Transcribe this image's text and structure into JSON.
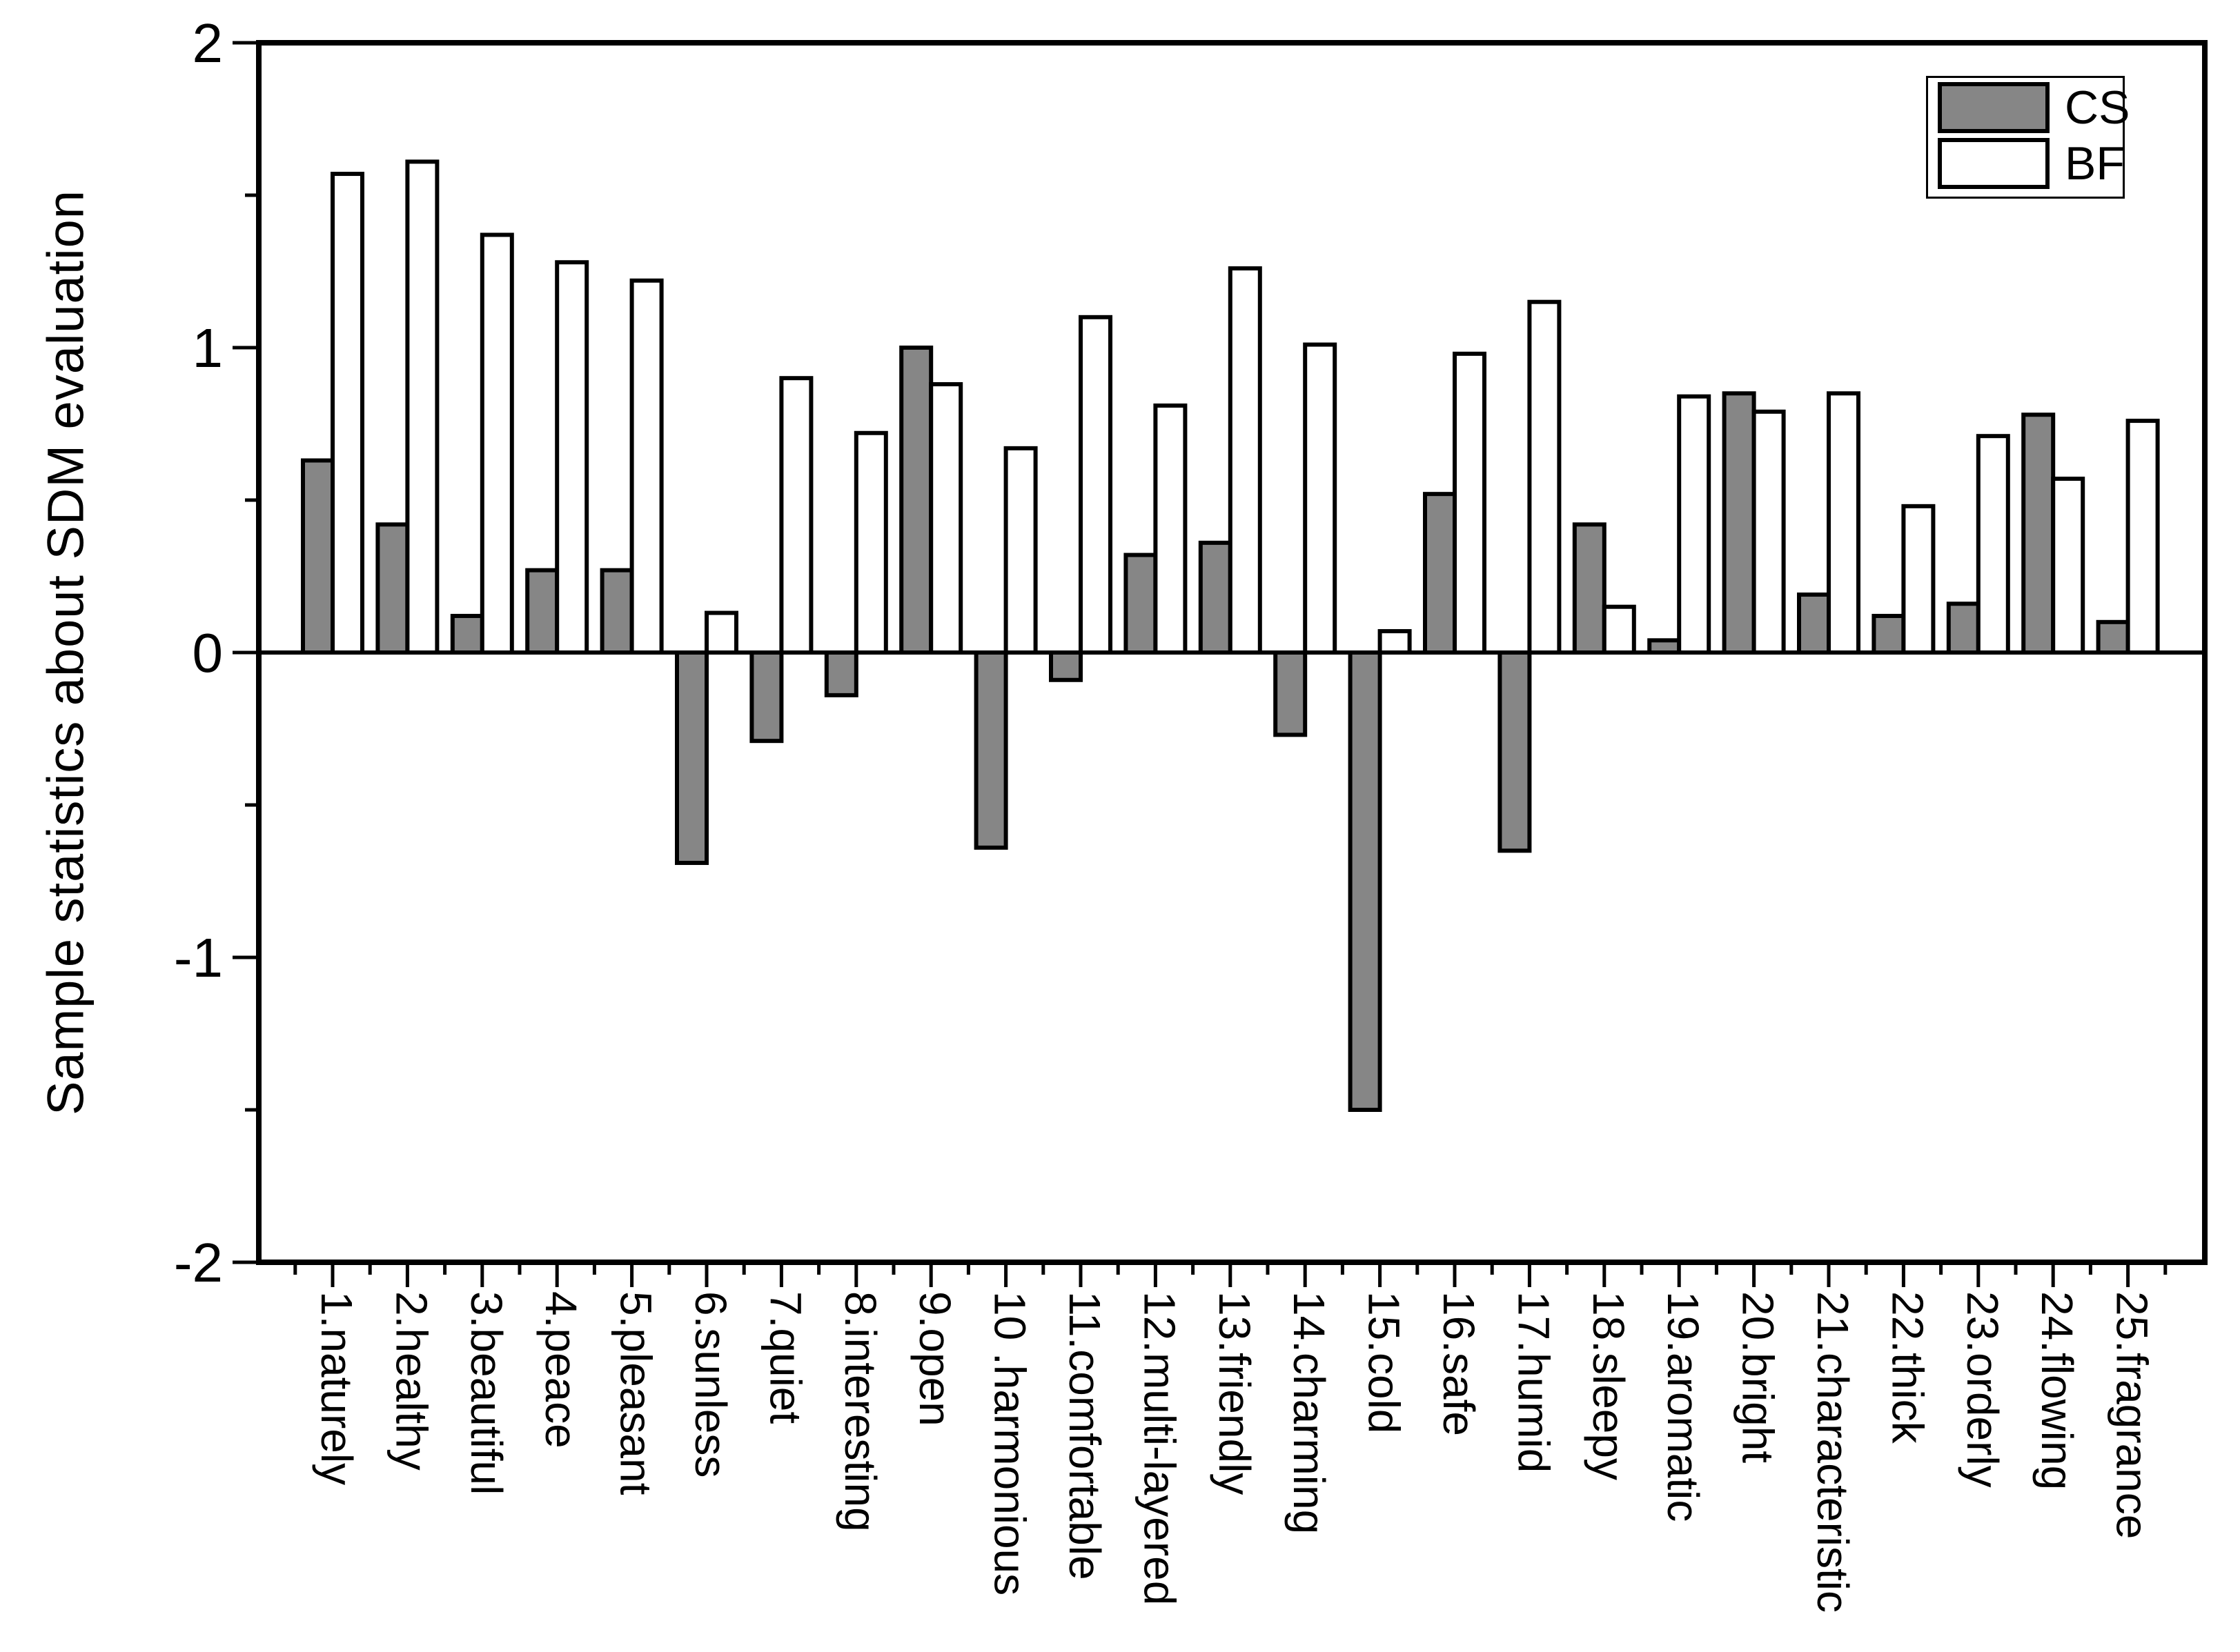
{
  "chart_data": {
    "type": "bar",
    "title": "",
    "ylabel": "Sample statistics about SDM evaluation",
    "xlabel": "",
    "ylim": [
      -2,
      2
    ],
    "yticks": [
      2,
      1,
      0,
      -1,
      -2
    ],
    "y_minor_step": 0.5,
    "grid": "off",
    "legend_position": "top-right",
    "bar_outline": "#000000",
    "categories": [
      "1.naturely",
      "2.healthy",
      "3.beautiful",
      "4.peace",
      "5.pleasant",
      "6.sunless",
      "7.quiet",
      "8.interesting",
      "9.open",
      "10 .harmonious",
      "11.comfortable",
      "12.multi-layered",
      "13.friendly",
      "14.charming",
      "15.cold",
      "16.safe",
      "17.humid",
      "18.sleepy",
      "19.aromatic",
      "20.bright",
      "21.characteristic",
      "22.thick",
      "23.orderly",
      "24.flowing",
      "25.fragrance"
    ],
    "series": [
      {
        "name": "CS",
        "fill": "#868686",
        "values": [
          0.63,
          0.42,
          0.12,
          0.27,
          0.27,
          -0.69,
          -0.29,
          -0.14,
          1.0,
          -0.64,
          -0.09,
          0.32,
          0.36,
          -0.27,
          -1.5,
          0.52,
          -0.65,
          0.42,
          0.04,
          0.85,
          0.19,
          0.12,
          0.16,
          0.78,
          0.1
        ]
      },
      {
        "name": "BF",
        "fill": "#ffffff",
        "values": [
          1.57,
          1.61,
          1.37,
          1.28,
          1.22,
          0.13,
          0.9,
          0.72,
          0.88,
          0.67,
          1.1,
          0.81,
          1.26,
          1.01,
          0.07,
          0.98,
          1.15,
          0.15,
          0.84,
          0.79,
          0.85,
          0.48,
          0.71,
          0.57,
          0.76
        ]
      }
    ]
  },
  "colors": {
    "axis": "#000000",
    "background": "#ffffff"
  }
}
